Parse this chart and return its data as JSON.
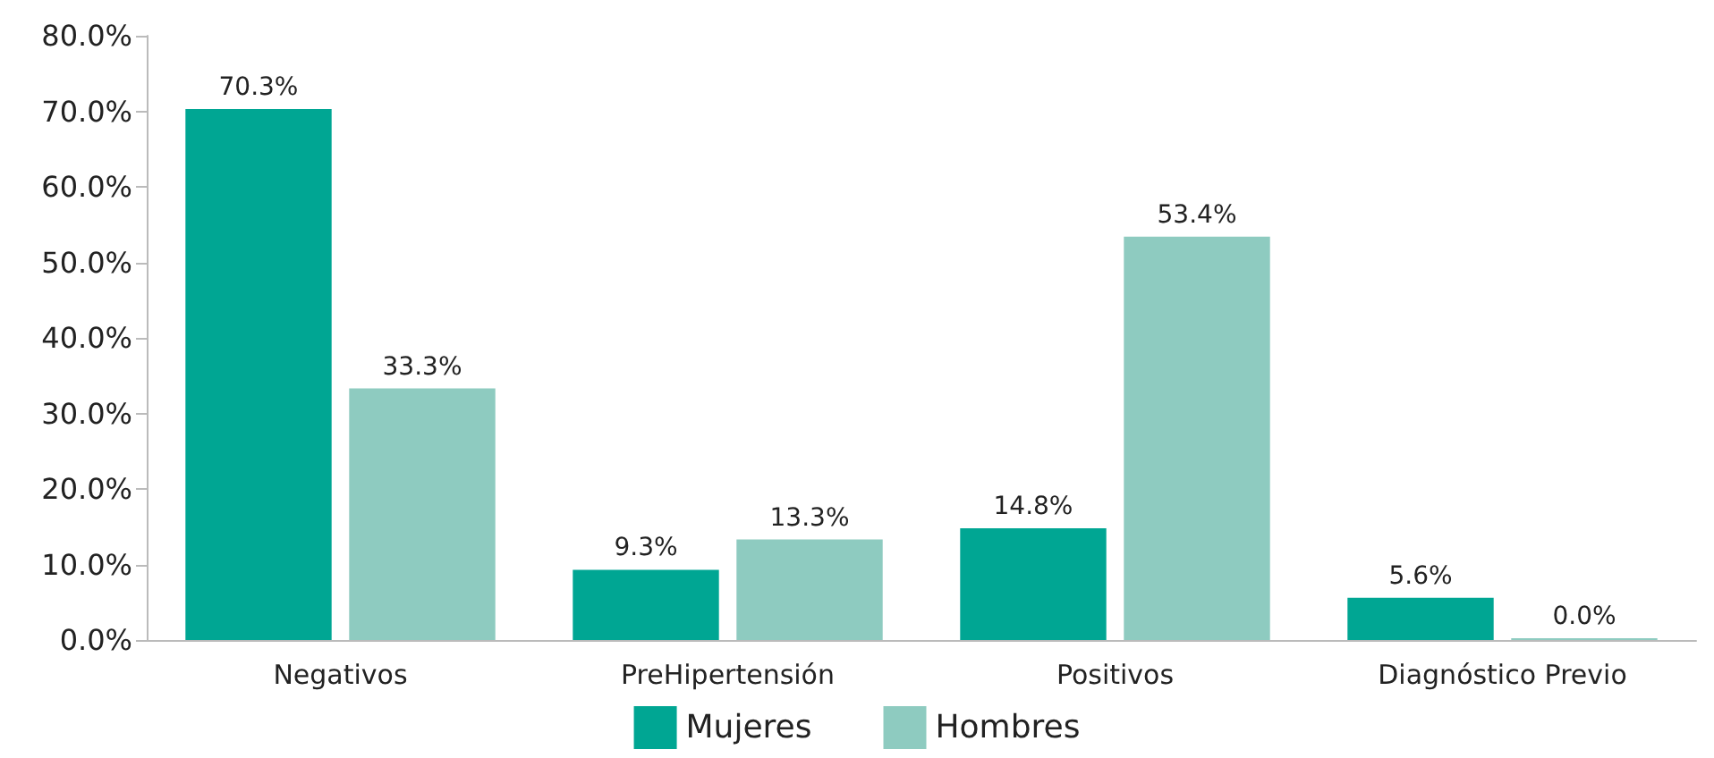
{
  "chart_data": {
    "type": "bar",
    "categories": [
      "Negativos",
      "PreHipertensión",
      "Positivos",
      "Diagnóstico Previo"
    ],
    "series": [
      {
        "name": "Mujeres",
        "color": "#00a693",
        "values": [
          70.3,
          9.3,
          14.8,
          5.6
        ],
        "value_labels": [
          "70.3%",
          "9.3%",
          "14.8%",
          "5.6%"
        ]
      },
      {
        "name": "Hombres",
        "color": "#8ecbc0",
        "values": [
          33.3,
          13.3,
          53.4,
          0.0
        ],
        "value_labels": [
          "33.3%",
          "13.3%",
          "53.4%",
          "0.0%"
        ]
      }
    ],
    "ylim": [
      0,
      80
    ],
    "yticks": [
      {
        "value": 0,
        "label": "0.0%"
      },
      {
        "value": 10,
        "label": "10.0%"
      },
      {
        "value": 20,
        "label": "20.0%"
      },
      {
        "value": 30,
        "label": "30.0%"
      },
      {
        "value": 40,
        "label": "40.0%"
      },
      {
        "value": 50,
        "label": "50.0%"
      },
      {
        "value": 60,
        "label": "60.0%"
      },
      {
        "value": 70,
        "label": "70.0%"
      },
      {
        "value": 80,
        "label": "80.0%"
      }
    ],
    "grid": false,
    "legend": "bottom"
  }
}
